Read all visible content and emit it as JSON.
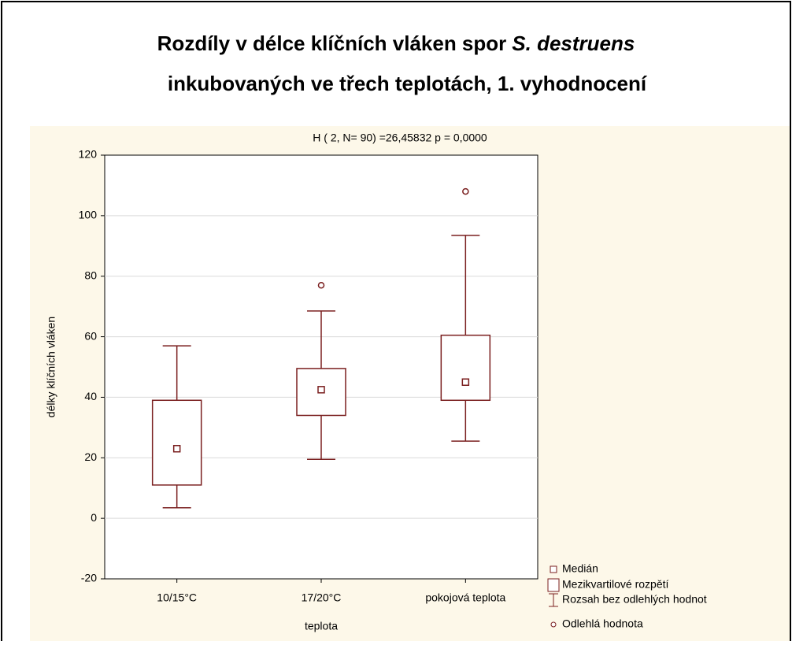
{
  "chart_data": {
    "type": "box",
    "title_parts": [
      "Rozdíly v délce klíčních vláken spor",
      "S. destruens",
      "inkubovaných ve třech teplotách, 1. vyhodnocení"
    ],
    "subtitle": "H ( 2, N= 90) =26,45832 p = 0,0000",
    "x_label": "teplota",
    "y_label": "délky klíčních vláken",
    "categories": [
      "10/15°C",
      "17/20°C",
      "pokojová teplota"
    ],
    "boxes": [
      {
        "median": 23,
        "q1": 11,
        "q3": 39,
        "whisker_low": 3.5,
        "whisker_high": 57,
        "outliers": []
      },
      {
        "median": 42.5,
        "q1": 34,
        "q3": 49.5,
        "whisker_low": 19.5,
        "whisker_high": 68.5,
        "outliers": [
          77
        ]
      },
      {
        "median": 45,
        "q1": 39,
        "q3": 60.5,
        "whisker_low": 25.5,
        "whisker_high": 93.5,
        "outliers": [
          108
        ]
      }
    ],
    "color": "#7a1f1f",
    "ylim": [
      -20,
      120
    ],
    "yticks": [
      -20,
      0,
      20,
      40,
      60,
      80,
      100,
      120
    ],
    "grid": true,
    "legend": [
      "Medián",
      "Mezikvartilové rozpětí",
      "Rozsah bez odlehlých hodnot",
      "Odlehlá hodnota"
    ]
  }
}
